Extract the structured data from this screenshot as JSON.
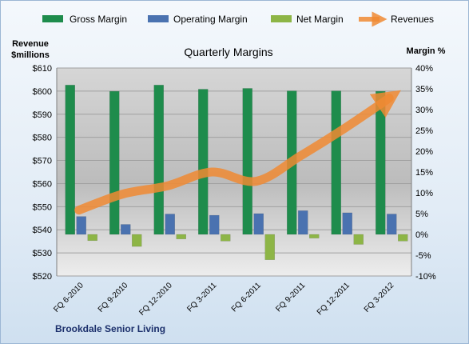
{
  "chart_data": {
    "type": "bar",
    "title": "Quarterly Margins",
    "source": "Brookdale Senior Living",
    "categories": [
      "FQ 6-2010",
      "FQ 9-2010",
      "FQ 12-2010",
      "FQ 3-2011",
      "FQ 6-2011",
      "FQ 9-2011",
      "FQ 12-2011",
      "FQ 3-2012"
    ],
    "left_axis": {
      "label_line1": "Revenue",
      "label_line2": "$millions",
      "min": 520,
      "max": 610,
      "step": 10,
      "tick_labels": [
        "$520",
        "$530",
        "$540",
        "$550",
        "$560",
        "$570",
        "$580",
        "$590",
        "$600",
        "$610"
      ]
    },
    "right_axis": {
      "label": "Margin %",
      "min": -10,
      "max": 40,
      "step": 5,
      "tick_labels": [
        "-10%",
        "-5%",
        "0%",
        "5%",
        "10%",
        "15%",
        "20%",
        "25%",
        "30%",
        "35%",
        "40%"
      ]
    },
    "series": [
      {
        "name": "Gross Margin",
        "type": "bar",
        "axis": "right",
        "color": "#1e8c4c",
        "values": [
          35.9,
          34.4,
          35.9,
          34.9,
          35.1,
          34.5,
          34.5,
          34.4
        ]
      },
      {
        "name": "Operating Margin",
        "type": "bar",
        "axis": "right",
        "color": "#4a72b0",
        "values": [
          4.3,
          2.4,
          4.9,
          4.6,
          5.0,
          5.7,
          5.2,
          4.9
        ]
      },
      {
        "name": "Net Margin",
        "type": "bar",
        "axis": "right",
        "color": "#8db546",
        "values": [
          -1.5,
          -2.9,
          -1.1,
          -1.6,
          -6.1,
          -0.9,
          -2.4,
          -1.6
        ]
      },
      {
        "name": "Revenues",
        "type": "line",
        "axis": "left",
        "color": "#f08a33",
        "values": [
          548.5,
          555.5,
          559,
          565,
          561,
          572,
          584,
          597
        ]
      }
    ],
    "grid": true,
    "legend": "top"
  }
}
